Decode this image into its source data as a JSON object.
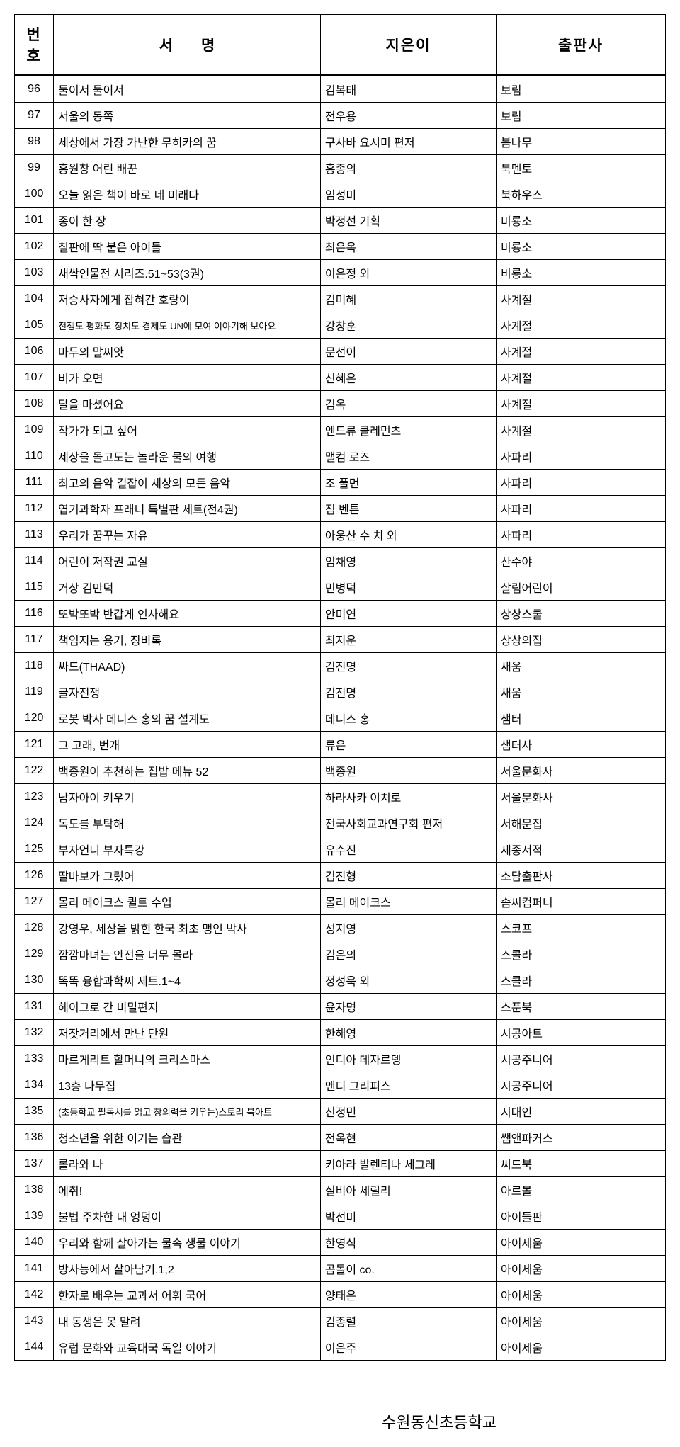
{
  "columns": [
    "번호",
    "서명",
    "지은이",
    "출판사"
  ],
  "footer": "수원동신초등학교",
  "smallRows": [
    105,
    135
  ],
  "rows": [
    {
      "num": "96",
      "title": "둘이서 둘이서",
      "author": "김복태",
      "pub": "보림"
    },
    {
      "num": "97",
      "title": "서울의 동쪽",
      "author": "전우용",
      "pub": "보림"
    },
    {
      "num": "98",
      "title": "세상에서 가장 가난한 무히카의 꿈",
      "author": "구사바 요시미 편저",
      "pub": "봄나무"
    },
    {
      "num": "99",
      "title": "홍원창 어린 배꾼",
      "author": "홍종의",
      "pub": "북멘토"
    },
    {
      "num": "100",
      "title": "오늘 읽은 책이 바로 네 미래다",
      "author": "임성미",
      "pub": "북하우스"
    },
    {
      "num": "101",
      "title": "종이 한 장",
      "author": "박정선 기획",
      "pub": "비룡소"
    },
    {
      "num": "102",
      "title": "칠판에 딱 붙은 아이들",
      "author": "최은옥",
      "pub": "비룡소"
    },
    {
      "num": "103",
      "title": "새싹인물전 시리즈.51~53(3권)",
      "author": "이은정 외",
      "pub": "비룡소"
    },
    {
      "num": "104",
      "title": "저승사자에게 잡혀간 호랑이",
      "author": "김미혜",
      "pub": "사계절"
    },
    {
      "num": "105",
      "title": "전쟁도 평화도 정치도 경제도 UN에 모여 이야기해 보아요",
      "author": "강창훈",
      "pub": "사계절"
    },
    {
      "num": "106",
      "title": "마두의 말씨앗",
      "author": "문선이",
      "pub": "사계절"
    },
    {
      "num": "107",
      "title": "비가 오면",
      "author": "신혜은",
      "pub": "사계절"
    },
    {
      "num": "108",
      "title": "달을 마셨어요",
      "author": "김옥",
      "pub": "사계절"
    },
    {
      "num": "109",
      "title": "작가가 되고 싶어",
      "author": "엔드류 클레먼츠",
      "pub": "사계절"
    },
    {
      "num": "110",
      "title": "세상을 돌고도는 놀라운 물의 여행",
      "author": "맬컴 로즈",
      "pub": "사파리"
    },
    {
      "num": "111",
      "title": "최고의 음악 길잡이 세상의 모든 음악",
      "author": "조 풀먼",
      "pub": "사파리"
    },
    {
      "num": "112",
      "title": "엽기과학자 프래니 특별판 세트(전4권)",
      "author": "짐 벤튼",
      "pub": "사파리"
    },
    {
      "num": "113",
      "title": "우리가 꿈꾸는 자유",
      "author": "아웅산 수 치 외",
      "pub": "사파리"
    },
    {
      "num": "114",
      "title": "어린이 저작권 교실",
      "author": "임채영",
      "pub": "산수야"
    },
    {
      "num": "115",
      "title": "거상 김만덕",
      "author": "민병덕",
      "pub": "살림어린이"
    },
    {
      "num": "116",
      "title": "또박또박 반갑게 인사해요",
      "author": "안미연",
      "pub": "상상스쿨"
    },
    {
      "num": "117",
      "title": "책임지는 용기, 징비록",
      "author": "최지운",
      "pub": "상상의집"
    },
    {
      "num": "118",
      "title": "싸드(THAAD)",
      "author": "김진명",
      "pub": "새움"
    },
    {
      "num": "119",
      "title": "글자전쟁",
      "author": "김진명",
      "pub": "새움"
    },
    {
      "num": "120",
      "title": "로봇 박사 데니스 홍의 꿈 설계도",
      "author": "데니스 홍",
      "pub": "샘터"
    },
    {
      "num": "121",
      "title": "그 고래, 번개",
      "author": "류은",
      "pub": "샘터사"
    },
    {
      "num": "122",
      "title": "백종원이 추천하는 집밥 메뉴 52",
      "author": "백종원",
      "pub": "서울문화사"
    },
    {
      "num": "123",
      "title": "남자아이 키우기",
      "author": "하라사카 이치로",
      "pub": "서울문화사"
    },
    {
      "num": "124",
      "title": "독도를 부탁해",
      "author": "전국사회교과연구회 편저",
      "pub": "서해문집"
    },
    {
      "num": "125",
      "title": "부자언니 부자특강",
      "author": "유수진",
      "pub": "세종서적"
    },
    {
      "num": "126",
      "title": "딸바보가 그렸어",
      "author": "김진형",
      "pub": "소담출판사"
    },
    {
      "num": "127",
      "title": "몰리 메이크스 퀼트 수업",
      "author": "몰리 메이크스",
      "pub": "솜씨컴퍼니"
    },
    {
      "num": "128",
      "title": "강영우, 세상을 밝힌 한국 최초 맹인 박사",
      "author": "성지영",
      "pub": "스코프"
    },
    {
      "num": "129",
      "title": "깜깜마녀는 안전을 너무 몰라",
      "author": "김은의",
      "pub": "스콜라"
    },
    {
      "num": "130",
      "title": "똑똑 융합과학씨 세트.1~4",
      "author": "정성욱 외",
      "pub": "스콜라"
    },
    {
      "num": "131",
      "title": "헤이그로 간 비밀편지",
      "author": "윤자명",
      "pub": "스푼북"
    },
    {
      "num": "132",
      "title": "저잣거리에서 만난 단원",
      "author": "한해영",
      "pub": "시공아트"
    },
    {
      "num": "133",
      "title": "마르게리트 할머니의 크리스마스",
      "author": "인디아 데자르뎅",
      "pub": "시공주니어"
    },
    {
      "num": "134",
      "title": "13층 나무집",
      "author": "앤디 그리피스",
      "pub": "시공주니어"
    },
    {
      "num": "135",
      "title": "(초등학교 필독서를 읽고 창의력을 키우는)스토리 북아트",
      "author": "신정민",
      "pub": "시대인"
    },
    {
      "num": "136",
      "title": "청소년을 위한 이기는 습관",
      "author": "전옥현",
      "pub": "쌤앤파커스"
    },
    {
      "num": "137",
      "title": "롤라와 나",
      "author": "키아라 발렌티나 세그레",
      "pub": "씨드북"
    },
    {
      "num": "138",
      "title": "에취!",
      "author": "실비아 세릴리",
      "pub": "아르볼"
    },
    {
      "num": "139",
      "title": "불법 주차한 내 엉덩이",
      "author": "박선미",
      "pub": "아이들판"
    },
    {
      "num": "140",
      "title": "우리와 함께 살아가는 물속 생물 이야기",
      "author": "한영식",
      "pub": "아이세움"
    },
    {
      "num": "141",
      "title": "방사능에서 살아남기.1,2",
      "author": "곰돌이 co.",
      "pub": "아이세움"
    },
    {
      "num": "142",
      "title": "한자로 배우는 교과서 어휘 국어",
      "author": "양태은",
      "pub": "아이세움"
    },
    {
      "num": "143",
      "title": "내 동생은 못 말려",
      "author": "김종렬",
      "pub": "아이세움"
    },
    {
      "num": "144",
      "title": "유럽 문화와 교육대국 독일 이야기",
      "author": "이은주",
      "pub": "아이세움"
    }
  ]
}
